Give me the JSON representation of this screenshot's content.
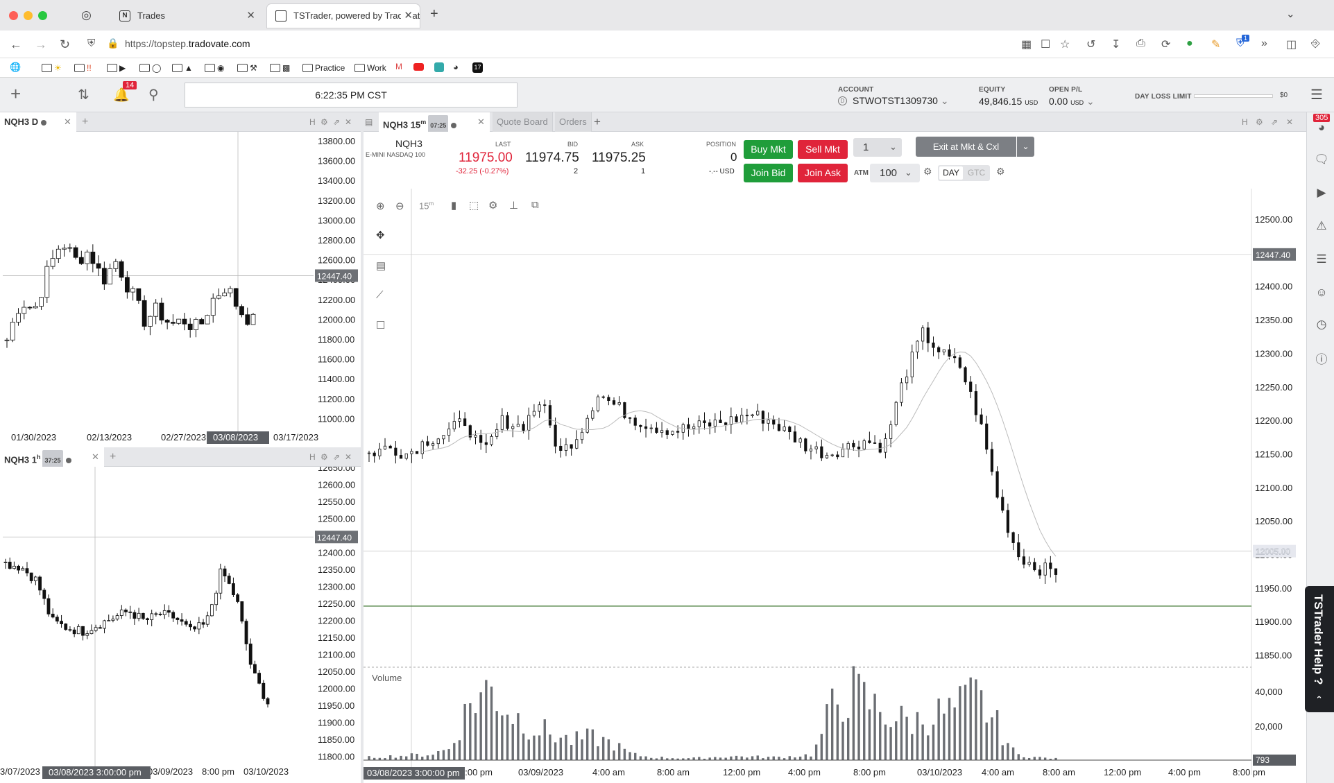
{
  "browser": {
    "tabs": [
      {
        "title": "Trades"
      },
      {
        "title": "TSTrader, powered by Tradovate"
      }
    ],
    "url_prefix": "https://topstep.",
    "url_domain": "tradovate.com",
    "url_suffix": ".com",
    "ext_badge": "1",
    "bookmarks": [
      {
        "label": ""
      },
      {
        "label": ""
      },
      {
        "label": ""
      },
      {
        "label": ""
      },
      {
        "label": ""
      },
      {
        "label": ""
      },
      {
        "label": "Practice"
      },
      {
        "label": "Work"
      }
    ]
  },
  "header": {
    "notifications": "14",
    "clock": "6:22:35 PM CST",
    "account_label": "ACCOUNT",
    "account": "STWOTST1309730",
    "equity_label": "EQUITY",
    "equity": "49,846.15",
    "equity_unit": "USD",
    "openpl_label": "OPEN P/L",
    "openpl": "0.00",
    "openpl_unit": "USD",
    "daylimit_label": "DAY LOSS LIMIT",
    "daylimit_value": "$0"
  },
  "left_top": {
    "tab": "NQH3 D",
    "y_ticks": [
      "13800.00",
      "13600.00",
      "13400.00",
      "13200.00",
      "13000.00",
      "12800.00",
      "12600.00",
      "12400.00",
      "12200.00",
      "12000.00",
      "11800.00",
      "11600.00",
      "11400.00",
      "11200.00",
      "11000.00"
    ],
    "x_ticks": [
      "01/30/2023",
      "02/13/2023",
      "02/27/2023",
      "03/17/2023"
    ],
    "crosshair_x_label": "03/08/2023",
    "crosshair_y_label": "12447.40"
  },
  "left_bottom": {
    "tab": "NQH3 1",
    "tab_sup": "h",
    "tab_badge": "37:25",
    "y_ticks": [
      "12650.00",
      "12600.00",
      "12550.00",
      "12500.00",
      "12450.00",
      "12400.00",
      "12350.00",
      "12300.00",
      "12250.00",
      "12200.00",
      "12150.00",
      "12100.00",
      "12050.00",
      "12000.00",
      "11950.00",
      "11900.00",
      "11850.00",
      "11800.00"
    ],
    "x_ticks": [
      "3/07/2023",
      "03/09/2023",
      "8:00 pm",
      "03/10/2023"
    ],
    "crosshair_x_label": "03/08/2023 3:00:00 pm",
    "crosshair_y_label": "12447.40"
  },
  "main": {
    "tabs": [
      {
        "label": "NQH3 15",
        "sup": "m",
        "badge": "07:25"
      },
      {
        "label": "Quote Board"
      },
      {
        "label": "Orders"
      }
    ],
    "symbol": "NQH3",
    "description": "E-MINI NASDAQ 100",
    "last_label": "LAST",
    "last": "11975.00",
    "change": "-32.25 (-0.27%)",
    "bid_label": "BID",
    "bid": "11974.75",
    "bid_size": "2",
    "ask_label": "ASK",
    "ask": "11975.25",
    "ask_size": "1",
    "position_label": "POSITION",
    "position": "0",
    "position_usd": "-.-- USD",
    "buy_mkt": "Buy Mkt",
    "sell_mkt": "Sell Mkt",
    "join_bid": "Join Bid",
    "join_ask": "Join Ask",
    "qty": "1",
    "atm_label": "ATM",
    "atm": "100",
    "exit": "Exit at Mkt & Cxl",
    "day": "DAY",
    "gtc": "GTC",
    "interval": "15",
    "interval_sup": "m",
    "volume_label": "Volume",
    "y_ticks": [
      "12500.00",
      "12450.00",
      "12400.00",
      "12350.00",
      "12300.00",
      "12250.00",
      "12200.00",
      "12150.00",
      "12100.00",
      "12050.00",
      "12000.00",
      "11950.00",
      "11900.00",
      "11850.00"
    ],
    "vol_ticks": [
      "40,000",
      "20,000"
    ],
    "vol_last": "793",
    "x_ticks": [
      "8:00 pm",
      "03/09/2023",
      "4:00 am",
      "8:00 am",
      "12:00 pm",
      "4:00 pm",
      "8:00 pm",
      "03/10/2023",
      "4:00 am",
      "8:00 am",
      "12:00 pm",
      "4:00 pm",
      "8:00 pm"
    ],
    "crosshair_x_label": "03/08/2023 3:00:00 pm",
    "crosshair_y_label": "12447.40",
    "hline_label": "12005.00"
  },
  "sidebar": {
    "badge": "305",
    "help": "TSTrader Help ?"
  },
  "colors": {
    "buy": "#1f9d3a",
    "sell": "#e0243a",
    "last": "#e0243a"
  }
}
